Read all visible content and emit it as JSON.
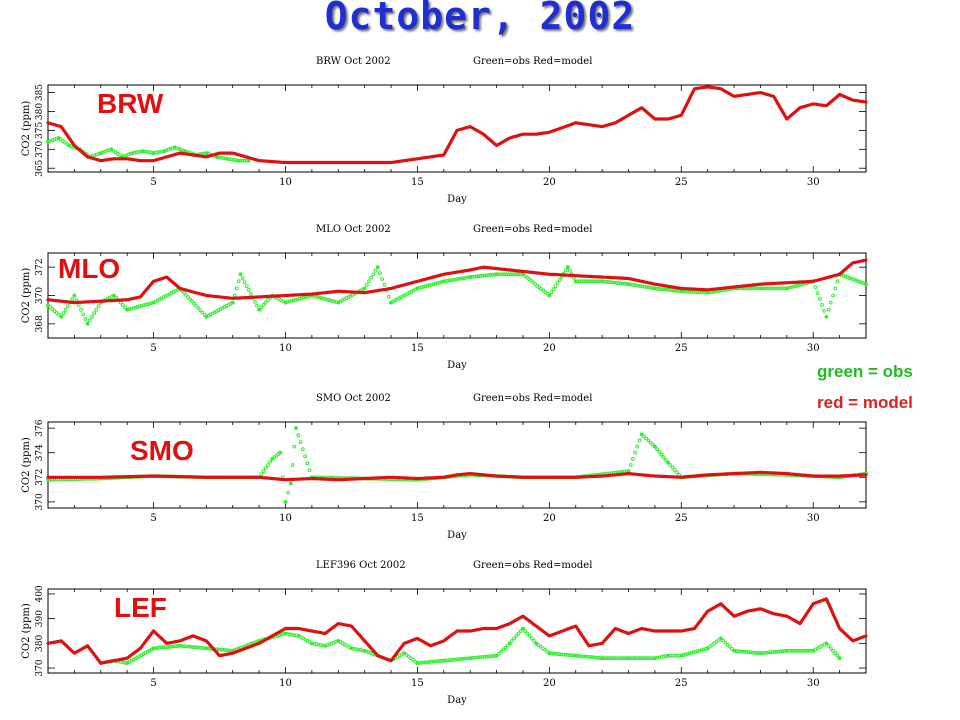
{
  "title": "October, 2002",
  "legend_note": {
    "green": "green = obs",
    "red": "red = model"
  },
  "colors": {
    "obs": "#33ee33",
    "model": "#dd1111",
    "title": "#1f2fd0"
  },
  "chart_data": [
    {
      "type": "line",
      "station": "BRW",
      "title_left": "BRW Oct 2002",
      "title_right": "Green=obs Red=model",
      "xlabel": "Day",
      "ylabel": "CO2 (ppm)",
      "xlim": [
        1,
        32
      ],
      "xticks": [
        5,
        10,
        15,
        20,
        25,
        30
      ],
      "ylim": [
        364,
        387
      ],
      "yticks": [
        365,
        370,
        375,
        380,
        385
      ],
      "ytick_labels": [
        "365",
        "370",
        "375",
        "380",
        "385"
      ],
      "series": [
        {
          "name": "model",
          "x": [
            1,
            1.5,
            2,
            2.5,
            3,
            3.5,
            4,
            4.5,
            5,
            5.5,
            6,
            6.5,
            7,
            7.5,
            8,
            8.5,
            9,
            10,
            11,
            12,
            13,
            14,
            15,
            16,
            16.5,
            17,
            17.5,
            18,
            18.5,
            19,
            19.5,
            20,
            21,
            22,
            22.5,
            23,
            23.5,
            24,
            24.5,
            25,
            25.5,
            26,
            26.5,
            27,
            27.5,
            28,
            28.5,
            29,
            29.5,
            30,
            30.5,
            31,
            31.5,
            32
          ],
          "y": [
            377,
            376,
            371,
            368,
            367,
            367.5,
            367.5,
            367,
            367,
            368,
            369,
            368.5,
            368,
            369,
            369,
            368,
            367,
            366.5,
            366.5,
            366.5,
            366.5,
            366.5,
            367.5,
            368.5,
            375,
            376,
            374,
            371,
            373,
            374,
            374,
            374.5,
            377,
            376,
            377,
            379,
            381,
            378,
            378,
            379,
            386,
            386.5,
            386,
            384,
            384.5,
            385,
            384,
            378,
            381,
            382,
            381.5,
            384.5,
            383,
            382.5
          ]
        },
        {
          "name": "obs",
          "x": [
            1,
            1.4,
            1.8,
            2.2,
            2.6,
            3,
            3.4,
            3.8,
            4.2,
            4.6,
            5,
            5.4,
            5.8,
            6.2,
            6.6,
            7,
            7.4,
            7.8,
            8.2,
            8.6
          ],
          "y": [
            372,
            373,
            371,
            370,
            368,
            369,
            370,
            368,
            369,
            369.5,
            369,
            369.5,
            370.5,
            369.5,
            368.5,
            369,
            368,
            367.5,
            367,
            367
          ]
        }
      ]
    },
    {
      "type": "line",
      "station": "MLO",
      "title_left": "MLO Oct 2002",
      "title_right": "Green=obs Red=model",
      "xlabel": "Day",
      "ylabel": "CO2 (ppm)",
      "xlim": [
        1,
        32
      ],
      "xticks": [
        5,
        10,
        15,
        20,
        25,
        30
      ],
      "ylim": [
        367,
        373
      ],
      "yticks": [
        368,
        370,
        372
      ],
      "ytick_labels": [
        "368",
        "370",
        "372"
      ],
      "series": [
        {
          "name": "model",
          "x": [
            1,
            2,
            3,
            4,
            4.5,
            5,
            5.5,
            6,
            7,
            8,
            9,
            10,
            11,
            12,
            13,
            14,
            15,
            16,
            17,
            17.5,
            18,
            19,
            20,
            21,
            22,
            23,
            24,
            25,
            26,
            27,
            28,
            29,
            30,
            31,
            31.5,
            32
          ],
          "y": [
            369.7,
            369.5,
            369.6,
            369.7,
            369.9,
            371,
            371.3,
            370.5,
            370,
            369.8,
            369.9,
            370,
            370.1,
            370.3,
            370.2,
            370.5,
            371,
            371.5,
            371.8,
            372,
            371.9,
            371.7,
            371.5,
            371.4,
            371.3,
            371.2,
            370.8,
            370.5,
            370.4,
            370.6,
            370.8,
            370.9,
            371,
            371.5,
            372.3,
            372.5
          ]
        },
        {
          "name": "obs",
          "x": [
            1,
            1.5,
            2,
            2.5,
            3,
            3.5,
            4,
            5,
            6,
            7,
            8,
            8.3,
            9,
            9.5,
            10,
            11,
            12,
            13,
            13.5,
            14,
            15,
            16,
            17,
            18,
            19,
            20,
            20.7,
            21,
            22,
            23,
            24,
            25,
            26,
            27,
            28,
            29,
            30,
            30.5,
            31,
            32
          ],
          "y": [
            369.3,
            368.5,
            370,
            368,
            369.5,
            370,
            369,
            369.5,
            370.5,
            368.5,
            369.5,
            371.5,
            369,
            370,
            369.5,
            370,
            369.5,
            370.5,
            372,
            369.5,
            370.5,
            371,
            371.3,
            371.5,
            371.5,
            370,
            372,
            371,
            371,
            370.8,
            370.5,
            370.3,
            370.2,
            370.5,
            370.5,
            370.5,
            371,
            368.5,
            371.5,
            370.8
          ]
        }
      ]
    },
    {
      "type": "line",
      "station": "SMO",
      "title_left": "SMO Oct 2002",
      "title_right": "Green=obs Red=model",
      "xlabel": "Day",
      "ylabel": "CO2 (ppm)",
      "xlim": [
        1,
        32
      ],
      "xticks": [
        5,
        10,
        15,
        20,
        25,
        30
      ],
      "ylim": [
        369.5,
        376.5
      ],
      "yticks": [
        370,
        372,
        374,
        376
      ],
      "ytick_labels": [
        "370",
        "372",
        "374",
        "376"
      ],
      "series": [
        {
          "name": "model",
          "x": [
            1,
            3,
            5,
            7,
            9,
            10,
            11,
            12,
            13,
            14,
            15,
            16,
            16.5,
            17,
            18,
            19,
            20,
            21,
            22,
            23,
            24,
            25,
            26,
            27,
            28,
            29,
            30,
            31,
            32
          ],
          "y": [
            372,
            372,
            372.1,
            372,
            372,
            371.8,
            371.9,
            371.8,
            371.9,
            372,
            371.9,
            372,
            372.2,
            372.3,
            372.1,
            372,
            372,
            372,
            372.1,
            372.3,
            372.1,
            372,
            372.2,
            372.3,
            372.4,
            372.3,
            372.1,
            372.1,
            372.2
          ]
        },
        {
          "name": "obs",
          "x": [
            1,
            3,
            5,
            7,
            9,
            9.5,
            9.8,
            10,
            10.2,
            10.4,
            11,
            13,
            15,
            17,
            19,
            21,
            23,
            23.5,
            24,
            24.5,
            25,
            27,
            29,
            31,
            32
          ],
          "y": [
            371.8,
            371.9,
            372.1,
            372,
            372,
            373.5,
            374,
            370,
            371.5,
            376,
            372,
            371.9,
            371.8,
            372.2,
            372,
            372,
            372.5,
            375.5,
            374.5,
            373.2,
            372,
            372.3,
            372.2,
            372,
            372.3
          ]
        }
      ]
    },
    {
      "type": "line",
      "station": "LEF",
      "title_left": "LEF396 Oct 2002",
      "title_right": "Green=obs Red=model",
      "xlabel": "Day",
      "ylabel": "CO2 (ppm)",
      "xlim": [
        1,
        32
      ],
      "xticks": [
        5,
        10,
        15,
        20,
        25,
        30
      ],
      "ylim": [
        368,
        402
      ],
      "yticks": [
        370,
        380,
        390,
        400
      ],
      "ytick_labels": [
        "370",
        "380",
        "390",
        "400"
      ],
      "series": [
        {
          "name": "model",
          "x": [
            1,
            1.5,
            2,
            2.5,
            3,
            3.5,
            4,
            4.5,
            5,
            5.5,
            6,
            6.5,
            7,
            7.5,
            8,
            8.5,
            9,
            9.5,
            10,
            10.5,
            11,
            11.5,
            12,
            12.5,
            13,
            13.5,
            14,
            14.5,
            15,
            15.5,
            16,
            16.5,
            17,
            17.5,
            18,
            18.5,
            19,
            19.5,
            20,
            20.5,
            21,
            21.5,
            22,
            22.5,
            23,
            23.5,
            24,
            24.5,
            25,
            25.5,
            26,
            26.5,
            27,
            27.5,
            28,
            28.5,
            29,
            29.5,
            30,
            30.5,
            31,
            31.5,
            32
          ],
          "y": [
            380,
            381,
            376,
            379,
            372,
            373,
            374,
            378,
            385,
            380,
            381,
            383,
            381,
            375,
            376,
            378,
            380,
            383,
            386,
            386,
            385,
            384,
            388,
            387,
            381,
            375,
            373,
            380,
            382,
            379,
            381,
            385,
            385,
            386,
            386,
            388,
            391,
            387,
            383,
            385,
            387,
            379,
            380,
            386,
            384,
            386,
            385,
            385,
            385,
            386,
            393,
            396,
            391,
            393,
            394,
            392,
            391,
            388,
            396,
            398,
            386,
            381,
            383
          ]
        },
        {
          "name": "obs",
          "x": [
            3,
            3.5,
            4,
            5,
            6,
            7,
            8,
            9,
            10,
            10.5,
            11,
            11.5,
            12,
            12.5,
            13,
            14,
            14.5,
            15,
            16,
            17,
            18,
            18.5,
            19,
            19.5,
            20,
            21,
            22,
            23,
            24,
            24.5,
            25,
            26,
            26.5,
            27,
            28,
            29,
            30,
            30.5,
            31
          ],
          "y": [
            372,
            373,
            372,
            378,
            379,
            378,
            377,
            381,
            384,
            383,
            380,
            379,
            381,
            378,
            377,
            373,
            376,
            372,
            373,
            374,
            375,
            380,
            386,
            380,
            376,
            375,
            374,
            374,
            374,
            375,
            375,
            378,
            382,
            377,
            376,
            377,
            377,
            380,
            374
          ]
        }
      ]
    }
  ]
}
